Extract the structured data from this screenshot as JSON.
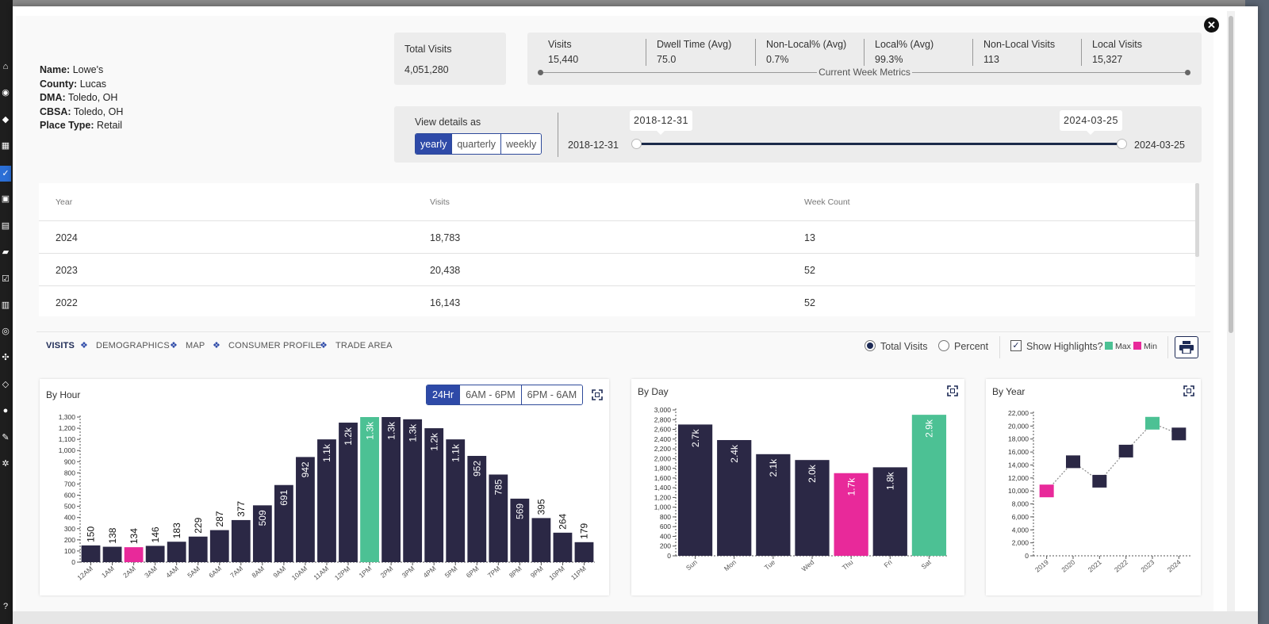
{
  "colors": {
    "bar": "#2b2845",
    "max": "#4cc194",
    "min": "#e8299a",
    "accent": "#2e4aa8"
  },
  "close_icon": "close-icon",
  "place": {
    "name_label": "Name:",
    "name": "Lowe's",
    "county_label": "County:",
    "county": "Lucas",
    "dma_label": "DMA:",
    "dma": "Toledo, OH",
    "cbsa_label": "CBSA:",
    "cbsa": "Toledo, OH",
    "type_label": "Place Type:",
    "type": "Retail"
  },
  "total": {
    "label": "Total Visits",
    "value": "4,051,280"
  },
  "metrics": {
    "caption": "Current Week Metrics",
    "items": [
      {
        "label": "Visits",
        "value": "15,440"
      },
      {
        "label": "Dwell Time (Avg)",
        "value": "75.0"
      },
      {
        "label": "Non-Local% (Avg)",
        "value": "0.7%"
      },
      {
        "label": "Local% (Avg)",
        "value": "99.3%"
      },
      {
        "label": "Non-Local Visits",
        "value": "113"
      },
      {
        "label": "Local Visits",
        "value": "15,327"
      }
    ]
  },
  "view": {
    "label": "View details as",
    "options": [
      "yearly",
      "quarterly",
      "weekly"
    ],
    "selected": "yearly",
    "start_date": "2018-12-31",
    "end_date": "2024-03-25",
    "start_tip": "2018-12-31",
    "end_tip": "2024-03-25"
  },
  "table": {
    "headers": [
      "Year",
      "Visits",
      "Week Count"
    ],
    "rows": [
      [
        "2024",
        "18,783",
        "13"
      ],
      [
        "2023",
        "20,438",
        "52"
      ],
      [
        "2022",
        "16,143",
        "52"
      ]
    ]
  },
  "tabs": [
    "VISITS",
    "DEMOGRAPHICS",
    "MAP",
    "CONSUMER PROFILE",
    "TRADE AREA"
  ],
  "tab_separator": "❖",
  "mode": {
    "total": "Total Visits",
    "percent": "Percent",
    "selected": "total"
  },
  "highlights": {
    "label": "Show Highlights?",
    "checked": true,
    "max": "Max",
    "min": "Min",
    "check_mark": "✓"
  },
  "hour_filters": [
    "24Hr",
    "6AM - 6PM",
    "6PM - 6AM"
  ],
  "chart_data": [
    {
      "type": "bar",
      "title": "By Hour",
      "categories": [
        "12AM",
        "1AM",
        "2AM",
        "3AM",
        "4AM",
        "5AM",
        "6AM",
        "7AM",
        "8AM",
        "9AM",
        "10AM",
        "11AM",
        "12PM",
        "1PM",
        "2PM",
        "3PM",
        "4PM",
        "5PM",
        "6PM",
        "7PM",
        "8PM",
        "9PM",
        "10PM",
        "11PM"
      ],
      "values": [
        150,
        138,
        134,
        146,
        183,
        229,
        287,
        377,
        509,
        691,
        942,
        1100,
        1250,
        1300,
        1300,
        1280,
        1200,
        1100,
        952,
        785,
        569,
        395,
        264,
        179
      ],
      "labels": [
        "150",
        "138",
        "134",
        "146",
        "183",
        "229",
        "287",
        "377",
        "509",
        "691",
        "942",
        "1.1k",
        "1.2k",
        "1.3k",
        "1.3k",
        "1.3k",
        "1.2k",
        "1.1k",
        "952",
        "785",
        "569",
        "395",
        "264",
        "179"
      ],
      "ylim": [
        0,
        1300
      ],
      "yticks": [
        0,
        100,
        200,
        300,
        400,
        500,
        600,
        700,
        800,
        900,
        1000,
        1100,
        1200,
        1300
      ],
      "ytick_labels": [
        "0",
        "100",
        "200",
        "300",
        "400",
        "500",
        "600",
        "700",
        "800",
        "900",
        "1,000",
        "1,100",
        "1,200",
        "1,300"
      ],
      "highlight_max": 13,
      "highlight_min": 2
    },
    {
      "type": "bar",
      "title": "By Day",
      "categories": [
        "Sun",
        "Mon",
        "Tue",
        "Wed",
        "Thu",
        "Fri",
        "Sat"
      ],
      "values": [
        2700,
        2380,
        2090,
        1970,
        1700,
        1820,
        2900
      ],
      "labels": [
        "2.7k",
        "2.4k",
        "2.1k",
        "2.0k",
        "1.7k",
        "1.8k",
        "2.9k"
      ],
      "ylim": [
        0,
        3000
      ],
      "yticks": [
        0,
        200,
        400,
        600,
        800,
        1000,
        1200,
        1400,
        1600,
        1800,
        2000,
        2200,
        2400,
        2600,
        2800,
        3000
      ],
      "ytick_labels": [
        "0",
        "200",
        "400",
        "600",
        "800",
        "1,000",
        "1,200",
        "1,400",
        "1,600",
        "1,800",
        "2,000",
        "2,200",
        "2,400",
        "2,600",
        "2,800",
        "3,000"
      ],
      "highlight_max": 6,
      "highlight_min": 4
    },
    {
      "type": "line",
      "title": "By Year",
      "categories": [
        "2019",
        "2020",
        "2021",
        "2022",
        "2023",
        "2024"
      ],
      "values": [
        10000,
        14500,
        11500,
        16143,
        20438,
        18783
      ],
      "ylim": [
        0,
        22000
      ],
      "yticks": [
        0,
        2000,
        4000,
        6000,
        8000,
        10000,
        12000,
        14000,
        16000,
        18000,
        20000,
        22000
      ],
      "ytick_labels": [
        "0",
        "2,000",
        "4,000",
        "6,000",
        "8,000",
        "10,000",
        "12,000",
        "14,000",
        "16,000",
        "18,000",
        "20,000",
        "22,000"
      ],
      "highlight_max": 4,
      "highlight_min": 0
    }
  ]
}
